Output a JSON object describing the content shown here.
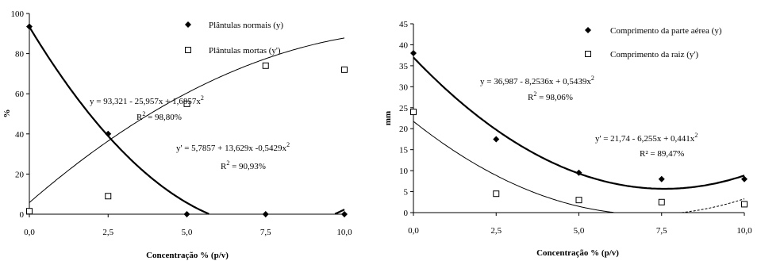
{
  "chart_data": [
    {
      "type": "scatter",
      "ylabel": "%",
      "xlabel": "Concentração % (p/v)",
      "x": [
        0,
        2.5,
        5,
        7.5,
        10
      ],
      "xticks": [
        "0,0",
        "2,5",
        "5,0",
        "7,5",
        "10,0"
      ],
      "yticks": [
        "0",
        "20",
        "40",
        "60",
        "80",
        "100"
      ],
      "xlim": [
        0,
        10
      ],
      "ylim": [
        0,
        100
      ],
      "legend_position": "top-right",
      "series": [
        {
          "name": "Plântulas normais (y)",
          "marker": "filled-diamond",
          "values": [
            93.5,
            40,
            0,
            0,
            0
          ],
          "fit": {
            "a": 93.321,
            "b": -25.957,
            "c": 1.6857,
            "xmin": 0,
            "xmax": 10,
            "ymin": 0
          },
          "equation": {
            "main": "y = 93,321 - 25,957x + 1,6857x",
            "sup": "2",
            "r2_pre": "R",
            "r2_sup": "2",
            "r2_post": " = 98,80%"
          }
        },
        {
          "name": "Plântulas mortas (y')",
          "marker": "open-square",
          "values": [
            1.5,
            9,
            55,
            74,
            72
          ],
          "fit": {
            "a": 5.7857,
            "b": 13.629,
            "c": -0.5429,
            "xmin": 0,
            "xmax": 10,
            "ymin": 0
          },
          "equation": {
            "main": "y' = 5,7857 + 13,629x -0,5429x",
            "sup": "2",
            "r2_pre": "R",
            "r2_sup": "2",
            "r2_post": " = 90,93%"
          }
        }
      ]
    },
    {
      "type": "scatter",
      "ylabel": "mm",
      "xlabel": "Concentração % (p/v)",
      "x": [
        0,
        2.5,
        5,
        7.5,
        10
      ],
      "xticks": [
        "0,0",
        "2,5",
        "5,0",
        "7,5",
        "10,0"
      ],
      "yticks": [
        "0",
        "5",
        "10",
        "15",
        "20",
        "25",
        "30",
        "35",
        "40",
        "45"
      ],
      "xlim": [
        0,
        10
      ],
      "ylim": [
        0,
        45
      ],
      "legend_position": "top-right",
      "series": [
        {
          "name": "Comprimento da parte aérea (y)",
          "marker": "filled-diamond",
          "values": [
            38,
            17.5,
            9.5,
            8,
            8
          ],
          "fit": {
            "a": 36.987,
            "b": -8.2536,
            "c": 0.5439,
            "xmin": 0,
            "xmax": 10,
            "ymin": 0
          },
          "equation": {
            "main": "y = 36,987 - 8,2536x + 0,5439x",
            "sup": "2",
            "r2_pre": "R",
            "r2_sup": "2",
            "r2_post": " = 98,06%"
          }
        },
        {
          "name": "Comprimento da raiz (y')",
          "marker": "open-square",
          "values": [
            24,
            4.5,
            3,
            2.5,
            2
          ],
          "fit": {
            "a": 21.74,
            "b": -6.255,
            "c": 0.441,
            "xmin": 0,
            "xmax": 10,
            "ymin": 0
          },
          "equation": {
            "main": "y' = 21,74 - 6,255x + 0,441x",
            "sup": "2",
            "r2_pre": "",
            "r2_sup": "",
            "r2_post": "R² = 89,47%"
          }
        }
      ]
    }
  ]
}
